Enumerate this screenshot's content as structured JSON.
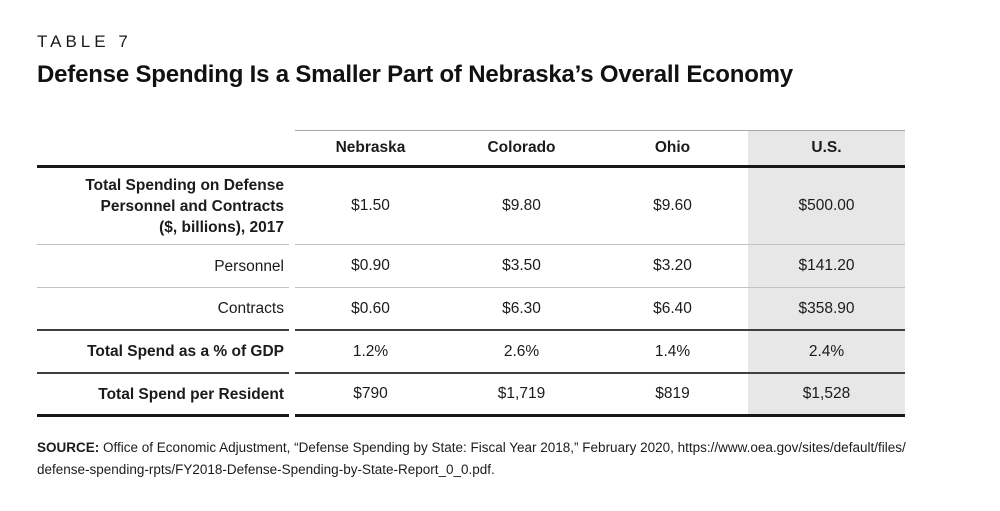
{
  "kicker": "TABLE 7",
  "title": "Defense Spending Is a Smaller Part of Nebraska’s Overall Economy",
  "table": {
    "column_headers": [
      "Nebraska",
      "Colorado",
      "Ohio",
      "U.S."
    ],
    "highlighted_column": "U.S.",
    "rows": [
      {
        "label_lines": [
          "Total Spending on Defense",
          "Personnel and Contracts",
          "($, billions), 2017"
        ],
        "values": [
          "$1.50",
          "$9.80",
          "$9.60",
          "$500.00"
        ]
      },
      {
        "label_lines": [
          "Personnel"
        ],
        "values": [
          "$0.90",
          "$3.50",
          "$3.20",
          "$141.20"
        ]
      },
      {
        "label_lines": [
          "Contracts"
        ],
        "values": [
          "$0.60",
          "$6.30",
          "$6.40",
          "$358.90"
        ]
      },
      {
        "label_lines": [
          "Total Spend as a % of GDP"
        ],
        "values": [
          "1.2%",
          "2.6%",
          "1.4%",
          "2.4%"
        ]
      },
      {
        "label_lines": [
          "Total Spend per Resident"
        ],
        "values": [
          "$790",
          "$1,719",
          "$819",
          "$1,528"
        ]
      }
    ]
  },
  "source": {
    "prefix": "SOURCE:",
    "lines": [
      "Office of Economic Adjustment, “Defense Spending by State: Fiscal Year 2018,” February 2020, https://www.oea.gov/sites/default/files/",
      "defense-spending-rpts/FY2018-Defense-Spending-by-State-Report_0_0.pdf."
    ]
  },
  "colors": {
    "highlight_column_bg": "#e7e7e8",
    "rule_heavy": "#191919",
    "rule_medium": "#3f3f3f",
    "rule_light": "#c2c2c2",
    "rule_header_top": "#a8a8a8"
  }
}
